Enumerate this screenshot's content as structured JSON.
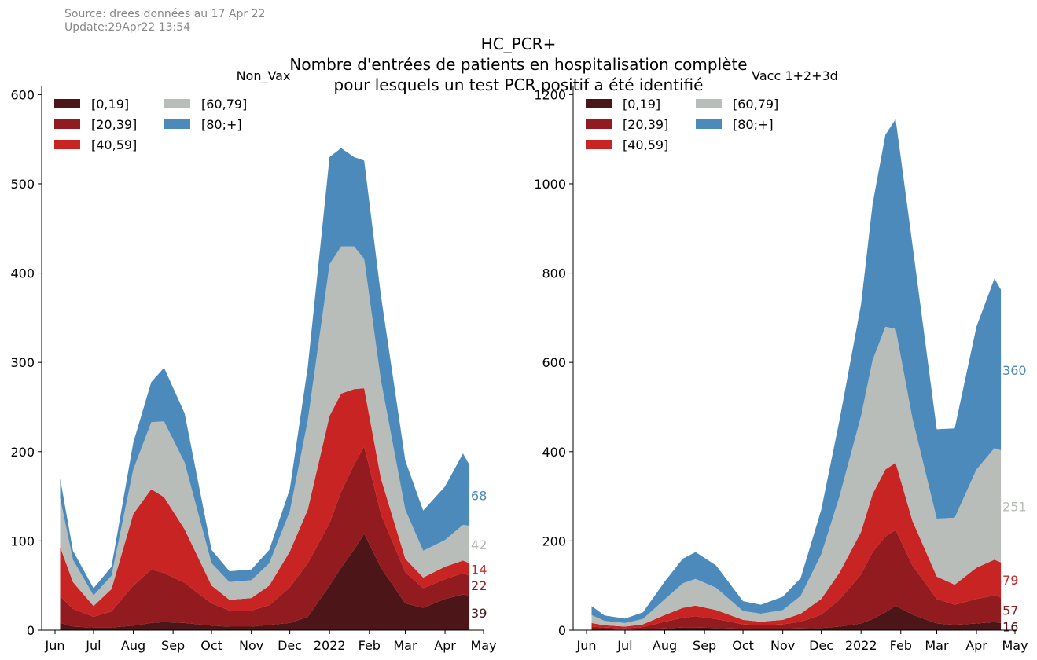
{
  "header": {
    "source": "Source: drees données au 17 Apr 22",
    "update": "Update:29Apr22 13:54",
    "title_lines": [
      "HC_PCR+",
      "Nombre d'entrées de patients en hospitalisation complète",
      "pour lesquels un test PCR positif a été identifié"
    ]
  },
  "colors": {
    "[0,19]": "#4c1517",
    "[20,39]": "#921b20",
    "[40,59]": "#c82423",
    "[60,79]": "#b9bdb9",
    "[80;+]": "#4b8aba"
  },
  "chart_data": [
    {
      "type": "area",
      "stacked": true,
      "title": "Non_Vax",
      "xlabel": "",
      "ylabel": "",
      "ylim": [
        0,
        610
      ],
      "yticks": [
        0,
        100,
        200,
        300,
        400,
        500,
        600
      ],
      "xtick_labels": [
        "Jun",
        "Jul",
        "Aug",
        "Sep",
        "Oct",
        "Nov",
        "Dec",
        "2022",
        "Feb",
        "Mar",
        "Apr",
        "May"
      ],
      "legend_placement": "top-left",
      "x": [
        "Jun 5",
        "Jun 15",
        "Jul 1",
        "Jul 15",
        "Aug 1",
        "Aug 15",
        "Aug 25",
        "Sep 10",
        "Oct 1",
        "Oct 15",
        "Nov 1",
        "Nov 15",
        "Dec 1",
        "Dec 15",
        "Jan 1",
        "Jan 10",
        "Jan 20",
        "Jan 28",
        "Feb 10",
        "Mar 1",
        "Mar 15",
        "Apr 1",
        "Apr 15",
        "Apr 20"
      ],
      "series": [
        {
          "name": "[0,19]",
          "values": [
            8,
            4,
            3,
            3,
            5,
            8,
            9,
            8,
            5,
            4,
            4,
            6,
            8,
            15,
            50,
            70,
            90,
            108,
            70,
            30,
            25,
            35,
            40,
            39
          ]
        },
        {
          "name": "[20,39]",
          "values": [
            30,
            20,
            12,
            18,
            45,
            60,
            55,
            45,
            25,
            18,
            18,
            22,
            40,
            60,
            70,
            85,
            95,
            98,
            60,
            35,
            22,
            22,
            24,
            22
          ]
        },
        {
          "name": "[40,59]",
          "values": [
            55,
            30,
            12,
            25,
            80,
            90,
            85,
            60,
            20,
            12,
            14,
            22,
            40,
            60,
            120,
            110,
            85,
            65,
            40,
            15,
            12,
            14,
            14,
            14
          ]
        },
        {
          "name": "[60,79]",
          "values": [
            55,
            25,
            12,
            15,
            50,
            75,
            85,
            75,
            25,
            20,
            20,
            25,
            45,
            100,
            170,
            165,
            160,
            145,
            110,
            55,
            30,
            30,
            40,
            42
          ]
        },
        {
          "name": "[80;+]",
          "values": [
            22,
            10,
            8,
            10,
            30,
            45,
            60,
            55,
            15,
            12,
            12,
            15,
            25,
            60,
            120,
            110,
            100,
            110,
            95,
            55,
            45,
            60,
            80,
            68
          ]
        }
      ],
      "end_labels": [
        {
          "series": "[0,19]",
          "text": "39"
        },
        {
          "series": "[20,39]",
          "text": "22"
        },
        {
          "series": "[40,59]",
          "text": "14"
        },
        {
          "series": "[60,79]",
          "text": "42"
        },
        {
          "series": "[80;+]",
          "text": "68"
        }
      ]
    },
    {
      "type": "area",
      "stacked": true,
      "title": "Vacc 1+2+3d",
      "xlabel": "",
      "ylabel": "",
      "ylim": [
        0,
        1220
      ],
      "yticks": [
        0,
        200,
        400,
        600,
        800,
        1000,
        1200
      ],
      "xtick_labels": [
        "Jun",
        "Jul",
        "Aug",
        "Sep",
        "Oct",
        "Nov",
        "Dec",
        "2022",
        "Feb",
        "Mar",
        "Apr",
        "May"
      ],
      "legend_placement": "top-left",
      "x": [
        "Jun 5",
        "Jun 15",
        "Jul 1",
        "Jul 15",
        "Aug 1",
        "Aug 15",
        "Aug 25",
        "Sep 10",
        "Oct 1",
        "Oct 15",
        "Nov 1",
        "Nov 15",
        "Dec 1",
        "Dec 15",
        "Jan 1",
        "Jan 10",
        "Jan 20",
        "Jan 28",
        "Feb 10",
        "Mar 1",
        "Mar 15",
        "Apr 1",
        "Apr 15",
        "Apr 20"
      ],
      "series": [
        {
          "name": "[0,19]",
          "values": [
            3,
            2,
            1,
            2,
            4,
            6,
            6,
            5,
            3,
            3,
            3,
            4,
            5,
            8,
            15,
            25,
            40,
            55,
            35,
            15,
            12,
            15,
            18,
            16
          ]
        },
        {
          "name": "[20,39]",
          "values": [
            5,
            4,
            3,
            5,
            15,
            22,
            25,
            20,
            10,
            8,
            10,
            15,
            30,
            60,
            110,
            150,
            170,
            170,
            110,
            55,
            45,
            55,
            60,
            57
          ]
        },
        {
          "name": "[40,59]",
          "values": [
            8,
            5,
            4,
            6,
            15,
            22,
            24,
            20,
            10,
            8,
            10,
            18,
            35,
            60,
            95,
            130,
            150,
            150,
            100,
            50,
            45,
            70,
            80,
            79
          ]
        },
        {
          "name": "[60,79]",
          "values": [
            18,
            10,
            8,
            12,
            35,
            55,
            60,
            50,
            20,
            18,
            22,
            40,
            100,
            170,
            260,
            300,
            320,
            300,
            230,
            130,
            150,
            220,
            250,
            251
          ]
        },
        {
          "name": "[80;+]",
          "values": [
            20,
            12,
            10,
            15,
            40,
            55,
            60,
            50,
            22,
            20,
            30,
            40,
            100,
            170,
            250,
            350,
            430,
            470,
            390,
            200,
            200,
            320,
            380,
            360
          ]
        }
      ],
      "end_labels": [
        {
          "series": "[0,19]",
          "text": "16"
        },
        {
          "series": "[20,39]",
          "text": "57"
        },
        {
          "series": "[40,59]",
          "text": "79"
        },
        {
          "series": "[60,79]",
          "text": "251"
        },
        {
          "series": "[80;+]",
          "text": "360"
        }
      ]
    }
  ]
}
